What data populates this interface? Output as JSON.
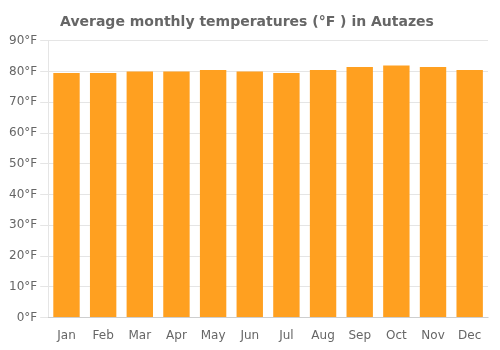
{
  "chart_data": {
    "type": "bar",
    "title": "Average monthly temperatures (°F ) in Autazes",
    "categories": [
      "Jan",
      "Feb",
      "Mar",
      "Apr",
      "May",
      "Jun",
      "Jul",
      "Aug",
      "Sep",
      "Oct",
      "Nov",
      "Dec"
    ],
    "values": [
      79.5,
      79.5,
      80.0,
      80.0,
      80.5,
      80.0,
      79.5,
      80.5,
      81.5,
      82.0,
      81.5,
      80.5
    ],
    "color": "#FFA020",
    "ylim": [
      0,
      90
    ],
    "yticks": [
      {
        "value": 0,
        "label": "0°F"
      },
      {
        "value": 10,
        "label": "10°F"
      },
      {
        "value": 20,
        "label": "20°F"
      },
      {
        "value": 30,
        "label": "30°F"
      },
      {
        "value": 40,
        "label": "40°F"
      },
      {
        "value": 50,
        "label": "50°F"
      },
      {
        "value": 60,
        "label": "60°F"
      },
      {
        "value": 70,
        "label": "70°F"
      },
      {
        "value": 80,
        "label": "80°F"
      },
      {
        "value": 90,
        "label": "90°F"
      }
    ],
    "grid": true
  }
}
